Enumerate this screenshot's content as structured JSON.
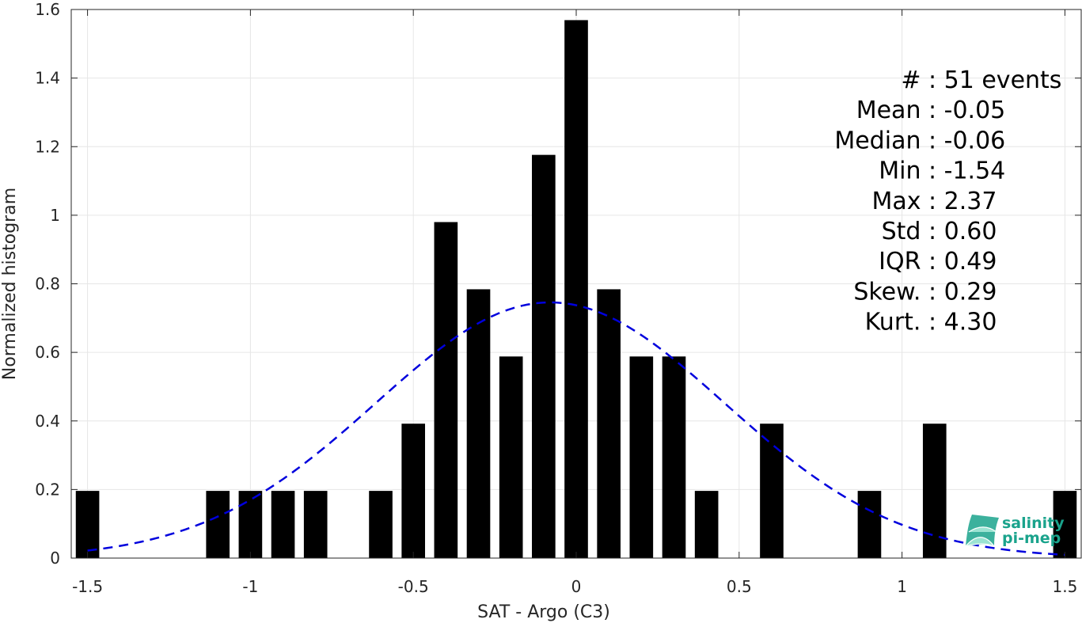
{
  "chart_data": {
    "type": "bar",
    "xlabel": "SAT - Argo (C3)",
    "ylabel": "Normalized histogram",
    "xlim": [
      -1.55,
      1.55
    ],
    "ylim": [
      0,
      1.6
    ],
    "xticks": [
      -1.5,
      -1,
      -0.5,
      0,
      0.5,
      1,
      1.5
    ],
    "xtick_labels": [
      "-1.5",
      "-1",
      "-0.5",
      "0",
      "0.5",
      "1",
      "1.5"
    ],
    "yticks": [
      0,
      0.2,
      0.4,
      0.6,
      0.8,
      1,
      1.2,
      1.4,
      1.6
    ],
    "ytick_labels": [
      "0",
      "0.2",
      "0.4",
      "0.6",
      "0.8",
      "1",
      "1.2",
      "1.4",
      "1.6"
    ],
    "grid": true,
    "bar_color": "#000000",
    "curve_color": "#0000dd",
    "bin_width": 0.1,
    "bars": [
      {
        "x": -1.5,
        "y": 0.196
      },
      {
        "x": -1.1,
        "y": 0.196
      },
      {
        "x": -1.0,
        "y": 0.196
      },
      {
        "x": -0.9,
        "y": 0.196
      },
      {
        "x": -0.8,
        "y": 0.196
      },
      {
        "x": -0.6,
        "y": 0.196
      },
      {
        "x": -0.5,
        "y": 0.392
      },
      {
        "x": -0.4,
        "y": 0.98
      },
      {
        "x": -0.3,
        "y": 0.784
      },
      {
        "x": -0.2,
        "y": 0.588
      },
      {
        "x": -0.1,
        "y": 1.176
      },
      {
        "x": 0.0,
        "y": 1.569
      },
      {
        "x": 0.1,
        "y": 0.784
      },
      {
        "x": 0.2,
        "y": 0.588
      },
      {
        "x": 0.3,
        "y": 0.588
      },
      {
        "x": 0.4,
        "y": 0.196
      },
      {
        "x": 0.6,
        "y": 0.392
      },
      {
        "x": 0.9,
        "y": 0.196
      },
      {
        "x": 1.1,
        "y": 0.392
      },
      {
        "x": 1.5,
        "y": 0.196
      }
    ],
    "fit_curve": {
      "style": "dashed",
      "mean": -0.08,
      "std": 0.535,
      "x_range": [
        -1.5,
        1.5
      ]
    },
    "stats": [
      "#  : 51 events",
      "Mean : -0.05",
      "Median : -0.06",
      "Min : -1.54",
      "Max : 2.37",
      "Std : 0.60",
      "IQR : 0.49",
      "Skew. : 0.29",
      "Kurt. : 4.30"
    ],
    "logo": {
      "line1": "salinity",
      "line2": "pi-mep",
      "color": "#1aa38c"
    }
  }
}
